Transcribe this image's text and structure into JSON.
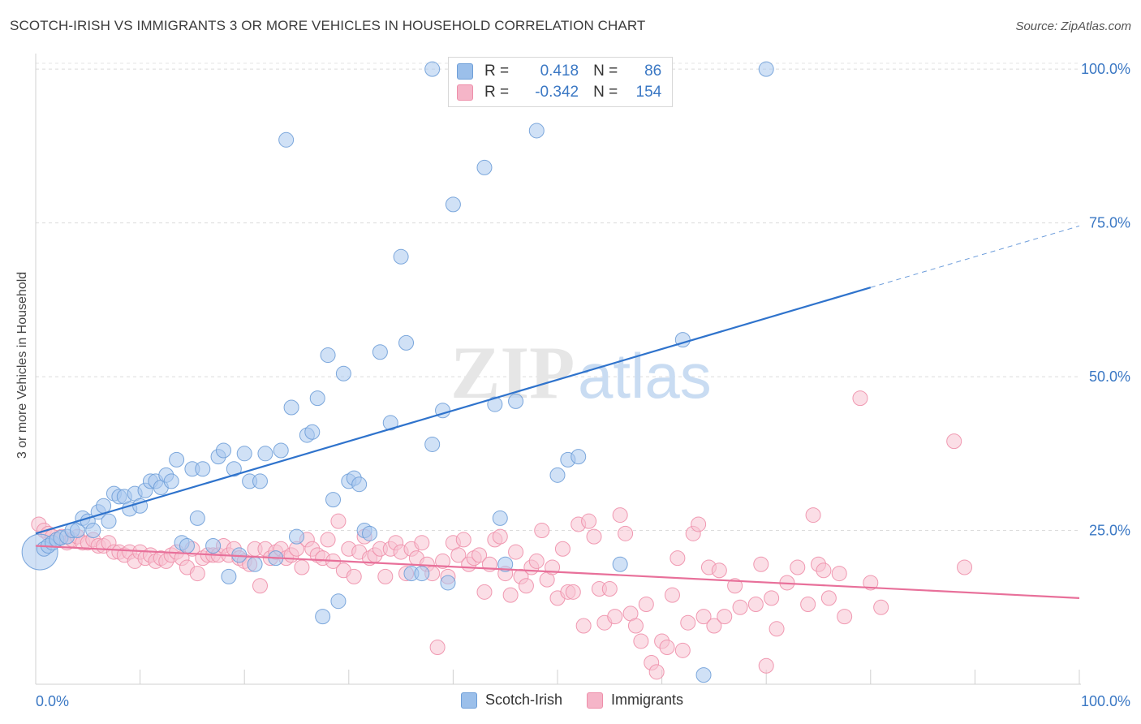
{
  "title": "SCOTCH-IRISH VS IMMIGRANTS 3 OR MORE VEHICLES IN HOUSEHOLD CORRELATION CHART",
  "source": "Source: ZipAtlas.com",
  "watermark": {
    "zip": "ZIP",
    "atlas": "atlas"
  },
  "legend": {
    "rows": [
      {
        "r_label": "R =",
        "r_value": "0.418",
        "n_label": "N =",
        "n_value": "86",
        "color": "#9bbfea",
        "border": "#6f9fd8"
      },
      {
        "r_label": "R =",
        "r_value": "-0.342",
        "n_label": "N =",
        "n_value": "154",
        "color": "#f5b5c8",
        "border": "#ee8faa"
      }
    ]
  },
  "bottom_legend": [
    {
      "label": "Scotch-Irish",
      "color": "#9bbfea",
      "border": "#6f9fd8"
    },
    {
      "label": "Immigrants",
      "color": "#f5b5c8",
      "border": "#ee8faa"
    }
  ],
  "chart_data": {
    "type": "scatter",
    "xlabel": "",
    "ylabel": "3 or more Vehicles in Household",
    "xlim": [
      0,
      100
    ],
    "ylim": [
      0,
      102
    ],
    "x_tick_labels": [
      "0.0%",
      "100.0%"
    ],
    "y_tick_labels": [
      "25.0%",
      "50.0%",
      "75.0%",
      "100.0%"
    ],
    "y_ticks": [
      25,
      50,
      75,
      100
    ],
    "grid": true,
    "series": [
      {
        "name": "Scotch-Irish",
        "color": "#6f9fd8",
        "fill": "#a9c8ef",
        "trend": {
          "x0": 0,
          "y0": 24.5,
          "x1": 80,
          "y1": 64.5,
          "x_dash_end": 100,
          "y_dash_end": 74.5,
          "color": "#2f73cc"
        },
        "points": [
          [
            0.4,
            21.5
          ],
          [
            0.8,
            22
          ],
          [
            1.2,
            22.5
          ],
          [
            1.6,
            23
          ],
          [
            2,
            23.5
          ],
          [
            2.4,
            23.8
          ],
          [
            3,
            24
          ],
          [
            3.5,
            25
          ],
          [
            4,
            25
          ],
          [
            4.5,
            27
          ],
          [
            5,
            26.5
          ],
          [
            5.5,
            25
          ],
          [
            6,
            28
          ],
          [
            6.5,
            29
          ],
          [
            7,
            26.5
          ],
          [
            7.5,
            31
          ],
          [
            8,
            30.5
          ],
          [
            8.5,
            30.5
          ],
          [
            9,
            28.5
          ],
          [
            9.5,
            31
          ],
          [
            10,
            29
          ],
          [
            10.5,
            31.5
          ],
          [
            11,
            33
          ],
          [
            11.5,
            33
          ],
          [
            12,
            32
          ],
          [
            12.5,
            34
          ],
          [
            13,
            33
          ],
          [
            13.5,
            36.5
          ],
          [
            14,
            23
          ],
          [
            14.5,
            22.5
          ],
          [
            15,
            35
          ],
          [
            15.5,
            27
          ],
          [
            16,
            35
          ],
          [
            17,
            22.5
          ],
          [
            17.5,
            37
          ],
          [
            18,
            38
          ],
          [
            18.5,
            17.5
          ],
          [
            19,
            35
          ],
          [
            19.5,
            21
          ],
          [
            20,
            37.5
          ],
          [
            20.5,
            33
          ],
          [
            21,
            19.5
          ],
          [
            21.5,
            33
          ],
          [
            22,
            37.5
          ],
          [
            23,
            20.5
          ],
          [
            23.5,
            38
          ],
          [
            24,
            88.5
          ],
          [
            24.5,
            45
          ],
          [
            25,
            24
          ],
          [
            26,
            40.5
          ],
          [
            26.5,
            41
          ],
          [
            27,
            46.5
          ],
          [
            27.5,
            11
          ],
          [
            28,
            53.5
          ],
          [
            28.5,
            30
          ],
          [
            29,
            13.5
          ],
          [
            29.5,
            50.5
          ],
          [
            30,
            33
          ],
          [
            30.5,
            33.5
          ],
          [
            31,
            32.5
          ],
          [
            31.5,
            25
          ],
          [
            32,
            24.5
          ],
          [
            33,
            54
          ],
          [
            34,
            42.5
          ],
          [
            35,
            69.5
          ],
          [
            35.5,
            55.5
          ],
          [
            36,
            18
          ],
          [
            37,
            18
          ],
          [
            38,
            39
          ],
          [
            39,
            44.5
          ],
          [
            39.5,
            16.5
          ],
          [
            40,
            78
          ],
          [
            43,
            84
          ],
          [
            44,
            45.5
          ],
          [
            44.5,
            27
          ],
          [
            45,
            19.5
          ],
          [
            46,
            46
          ],
          [
            48,
            90
          ],
          [
            50,
            34
          ],
          [
            51,
            36.5
          ],
          [
            52,
            37
          ],
          [
            56,
            19.5
          ],
          [
            62,
            56
          ],
          [
            64,
            1.5
          ],
          [
            38,
            100
          ],
          [
            70,
            100
          ]
        ]
      },
      {
        "name": "Immigrants",
        "color": "#ee8faa",
        "fill": "#f8c3d2",
        "trend": {
          "x0": 0,
          "y0": 22.5,
          "x1": 100,
          "y1": 14.0,
          "color": "#e8709a"
        },
        "points": [
          [
            0.3,
            26
          ],
          [
            0.8,
            25
          ],
          [
            1.2,
            24.5
          ],
          [
            1.6,
            24
          ],
          [
            2,
            23.5
          ],
          [
            2.5,
            24
          ],
          [
            3,
            23
          ],
          [
            3.5,
            23.5
          ],
          [
            4,
            24
          ],
          [
            4.5,
            23
          ],
          [
            5,
            23
          ],
          [
            5.5,
            23.5
          ],
          [
            6,
            22.5
          ],
          [
            6.5,
            22.5
          ],
          [
            7,
            23
          ],
          [
            7.5,
            21.5
          ],
          [
            8,
            21.5
          ],
          [
            8.5,
            21
          ],
          [
            9,
            21.5
          ],
          [
            9.5,
            20
          ],
          [
            10,
            21.5
          ],
          [
            10.5,
            20.5
          ],
          [
            11,
            21
          ],
          [
            11.5,
            20
          ],
          [
            12,
            20.5
          ],
          [
            12.5,
            20
          ],
          [
            13,
            21
          ],
          [
            13.5,
            21.5
          ],
          [
            14,
            20.5
          ],
          [
            14.5,
            19
          ],
          [
            15,
            22
          ],
          [
            15.5,
            18
          ],
          [
            16,
            20.5
          ],
          [
            16.5,
            21
          ],
          [
            17,
            21
          ],
          [
            17.5,
            21
          ],
          [
            18,
            22.5
          ],
          [
            18.5,
            21
          ],
          [
            19,
            22
          ],
          [
            19.5,
            20.5
          ],
          [
            20,
            20
          ],
          [
            20.5,
            19.5
          ],
          [
            21,
            22
          ],
          [
            21.5,
            16
          ],
          [
            22,
            22
          ],
          [
            22.5,
            20.5
          ],
          [
            23,
            21.5
          ],
          [
            23.5,
            22
          ],
          [
            24,
            20.5
          ],
          [
            24.5,
            21
          ],
          [
            25,
            22
          ],
          [
            25.5,
            19
          ],
          [
            26,
            23.5
          ],
          [
            26.5,
            22
          ],
          [
            27,
            21
          ],
          [
            27.5,
            20.5
          ],
          [
            28,
            23.5
          ],
          [
            28.5,
            20
          ],
          [
            29,
            26.5
          ],
          [
            29.5,
            18.5
          ],
          [
            30,
            22
          ],
          [
            30.5,
            17.5
          ],
          [
            31,
            21.5
          ],
          [
            31.5,
            24
          ],
          [
            32,
            20.5
          ],
          [
            32.5,
            21
          ],
          [
            33,
            22
          ],
          [
            33.5,
            17.5
          ],
          [
            34,
            22
          ],
          [
            34.5,
            23
          ],
          [
            35,
            21.5
          ],
          [
            35.5,
            18
          ],
          [
            36,
            22
          ],
          [
            36.5,
            20.5
          ],
          [
            37,
            23
          ],
          [
            37.5,
            19.5
          ],
          [
            38,
            18
          ],
          [
            38.5,
            6
          ],
          [
            39,
            20
          ],
          [
            39.5,
            17.5
          ],
          [
            40,
            23
          ],
          [
            40.5,
            21
          ],
          [
            41,
            23.5
          ],
          [
            41.5,
            19.5
          ],
          [
            42,
            20.5
          ],
          [
            42.5,
            21
          ],
          [
            43,
            15
          ],
          [
            43.5,
            19.5
          ],
          [
            44,
            23.5
          ],
          [
            44.5,
            24
          ],
          [
            45,
            18
          ],
          [
            45.5,
            14.5
          ],
          [
            46,
            21.5
          ],
          [
            46.5,
            17.5
          ],
          [
            47,
            16
          ],
          [
            47.5,
            19
          ],
          [
            48,
            20
          ],
          [
            48.5,
            25
          ],
          [
            49,
            17
          ],
          [
            49.5,
            19
          ],
          [
            50,
            14
          ],
          [
            50.5,
            22
          ],
          [
            51,
            15
          ],
          [
            51.5,
            15
          ],
          [
            52,
            26
          ],
          [
            52.5,
            9.5
          ],
          [
            53,
            26.5
          ],
          [
            53.5,
            24
          ],
          [
            54,
            15.5
          ],
          [
            54.5,
            10
          ],
          [
            55,
            15.5
          ],
          [
            55.5,
            11
          ],
          [
            56,
            27.5
          ],
          [
            56.5,
            24.5
          ],
          [
            57,
            11.5
          ],
          [
            57.5,
            9.5
          ],
          [
            58,
            7
          ],
          [
            58.5,
            13
          ],
          [
            59,
            3.5
          ],
          [
            59.5,
            2
          ],
          [
            60,
            7
          ],
          [
            60.5,
            6
          ],
          [
            61,
            14.5
          ],
          [
            61.5,
            20.5
          ],
          [
            62,
            5.5
          ],
          [
            62.5,
            10
          ],
          [
            63,
            24.5
          ],
          [
            63.5,
            26
          ],
          [
            64,
            11
          ],
          [
            64.5,
            19
          ],
          [
            65,
            9.5
          ],
          [
            65.5,
            18.5
          ],
          [
            66,
            11
          ],
          [
            67,
            16
          ],
          [
            67.5,
            12.5
          ],
          [
            69,
            13
          ],
          [
            69.5,
            19.5
          ],
          [
            70,
            3
          ],
          [
            70.5,
            14
          ],
          [
            71,
            9
          ],
          [
            72,
            16.5
          ],
          [
            73,
            19
          ],
          [
            74,
            13
          ],
          [
            74.5,
            27.5
          ],
          [
            75,
            19.5
          ],
          [
            75.5,
            18.5
          ],
          [
            76,
            14
          ],
          [
            77,
            18
          ],
          [
            77.5,
            11
          ],
          [
            79,
            46.5
          ],
          [
            80,
            16.5
          ],
          [
            81,
            12.5
          ],
          [
            88,
            39.5
          ],
          [
            89,
            19
          ]
        ]
      }
    ]
  }
}
